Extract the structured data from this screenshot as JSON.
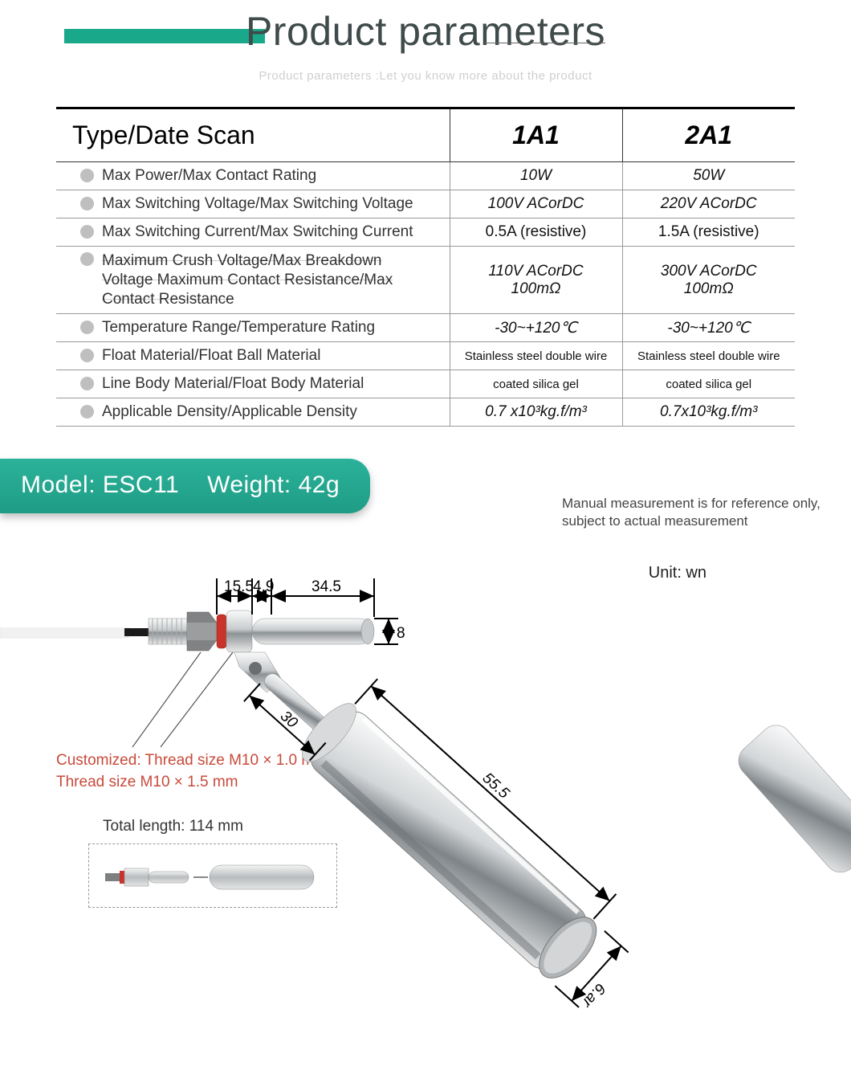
{
  "header": {
    "title": "Product parameters",
    "title_color": "#3f4a4a",
    "bar_color": "#1aa88b",
    "subtitle": "Product parameters :Let you know more about the product",
    "subtitle_color": "#cfcfcf"
  },
  "table": {
    "header_param": "Type/Date Scan",
    "col1": "1A1",
    "col2": "2A1",
    "rows": [
      {
        "label": "Max Power/Max Contact Rating",
        "v1": "10W",
        "v2": "50W"
      },
      {
        "label": "Max Switching Voltage/Max Switching Voltage",
        "v1": "100V ACorDC",
        "v2": "220V ACorDC"
      },
      {
        "label": "Max Switching Current/Max Switching Current",
        "v1": "0.5A (resistive)",
        "v2": "1.5A (resistive)",
        "v1_plain": true,
        "v2_plain": true
      },
      {
        "label": "Maximum Crush Voltage/Max Breakdown Voltage Maximum Contact Resistance/Max Contact Resistance",
        "v1a": "110V ACorDC",
        "v1b": "100mΩ",
        "v2a": "300V ACorDC",
        "v2b": "100mΩ",
        "multi": true
      },
      {
        "label": "Temperature Range/Temperature Rating",
        "v1": "-30~+120℃",
        "v2": "-30~+120℃"
      },
      {
        "label": "Float Material/Float Ball Material",
        "v1": "Stainless steel double wire",
        "v2": "Stainless steel double wire",
        "small": true
      },
      {
        "label": "Line Body Material/Float Body Material",
        "v1": "coated silica gel",
        "v2": "coated silica gel",
        "small": true
      },
      {
        "label": "Applicable Density/Applicable Density",
        "v1": "0.7 x10³kg.f/m³",
        "v2": "0.7x10³kg.f/m³"
      }
    ]
  },
  "model": {
    "label_model": "Model:",
    "value_model": "ESC11",
    "label_weight": "Weight:",
    "value_weight": "42g",
    "pill_bg": "#2bb29a"
  },
  "notes": {
    "disclaimer": "Manual measurement is for reference only, subject to actual measurement",
    "unit": "Unit: wn",
    "custom": "Customized: Thread size M10 × 1.0 mm Thread size M10 × 1.5 mm",
    "custom_color": "#c84a3a",
    "total_length": "Total length: 114 mm"
  },
  "diagram": {
    "dims": {
      "a": "15.5",
      "b": "4.9",
      "c": "34.5",
      "d": "8",
      "e": "30",
      "f": "55.5",
      "g": "6.ar"
    },
    "colors": {
      "metal_light": "#e8e9ea",
      "metal_dark": "#9aa0a4",
      "metal_shine": "#ffffff",
      "gasket": "#c9332b",
      "nut": "#7d7f80",
      "wire": "#ececec",
      "dim_line": "#000000",
      "pointer": "#555555"
    }
  }
}
